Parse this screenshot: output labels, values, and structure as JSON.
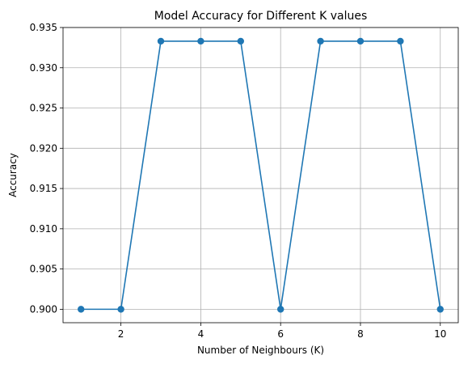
{
  "chart_data": {
    "type": "line",
    "title": "Model Accuracy for Different K values",
    "xlabel": "Number of Neighbours (K)",
    "ylabel": "Accuracy",
    "x": [
      1,
      2,
      3,
      4,
      5,
      6,
      7,
      8,
      9,
      10
    ],
    "series": [
      {
        "values": [
          0.9,
          0.9,
          0.9333,
          0.9333,
          0.9333,
          0.9,
          0.9333,
          0.9333,
          0.9333,
          0.9
        ]
      }
    ],
    "xticks": [
      2,
      4,
      6,
      8,
      10
    ],
    "xtick_labels": [
      "2",
      "4",
      "6",
      "8",
      "10"
    ],
    "yticks": [
      0.9,
      0.905,
      0.91,
      0.915,
      0.92,
      0.925,
      0.93,
      0.935
    ],
    "ytick_labels": [
      "0.900",
      "0.905",
      "0.910",
      "0.915",
      "0.920",
      "0.925",
      "0.930",
      "0.935"
    ],
    "xlim": [
      0.55,
      10.45
    ],
    "ylim": [
      0.89833,
      0.935
    ],
    "grid": true,
    "marker": "circle",
    "line_color": "#1f77b4"
  }
}
